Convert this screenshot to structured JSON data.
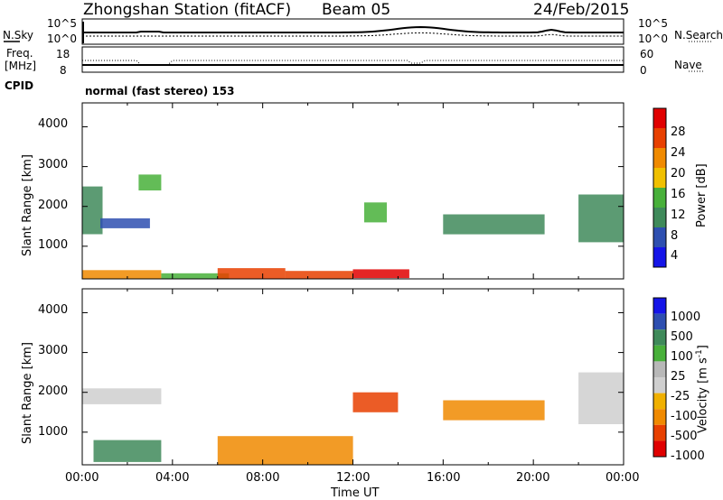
{
  "header": {
    "station": "Zhongshan Station (fitACF)",
    "beam": "Beam 05",
    "date": "24/Feb/2015"
  },
  "noise_panel": {
    "left_label": "N.Sky",
    "right_label": "N.Search",
    "left_ticks": [
      "10^5",
      "10^0"
    ],
    "right_ticks": [
      "10^5",
      "10^0"
    ]
  },
  "freq_panel": {
    "left_label_1": "Freq.",
    "left_label_2": "[MHz]",
    "right_label": "Nave",
    "left_ticks": [
      "18",
      "8"
    ],
    "right_ticks": [
      "60",
      "0"
    ]
  },
  "cpid": {
    "label": "CPID",
    "text": "normal (fast stereo) 153"
  },
  "colors": {
    "power": [
      "#1515e8",
      "#2e4fb0",
      "#3f8a5a",
      "#48b03a",
      "#f0c000",
      "#f08a00",
      "#e84000",
      "#e00000"
    ],
    "velocity": [
      "#e00000",
      "#e84000",
      "#f08a00",
      "#f0b000",
      "#cfcfcf",
      "#b8b8b8",
      "#48b03a",
      "#3f8a5a",
      "#2e4fb0",
      "#1515e8"
    ]
  },
  "power_colorbar": {
    "label": "Power [dB]",
    "ticks": [
      "28",
      "24",
      "20",
      "16",
      "12",
      "8",
      "4"
    ]
  },
  "velocity_colorbar": {
    "label": "Velocity [m s",
    "label_sup": "-1",
    "label_end": "]",
    "ticks": [
      "1000",
      "500",
      "100",
      "25",
      "-25",
      "-100",
      "-500",
      "-1000"
    ]
  },
  "chart_data": [
    {
      "type": "heatmap",
      "title": "Power",
      "ylabel": "Slant Range [km]",
      "xlabel": "Time UT",
      "x_ticks": [
        "00:00",
        "04:00",
        "08:00",
        "12:00",
        "16:00",
        "20:00",
        "00:00"
      ],
      "y_ticks": [
        "1000",
        "2000",
        "3000",
        "4000"
      ],
      "xlim": [
        0,
        24
      ],
      "ylim": [
        180,
        4600
      ],
      "colorbar_range": [
        0,
        32
      ],
      "regions": [
        {
          "t": [
            0.0,
            0.9
          ],
          "r": [
            1300,
            2500
          ],
          "v": 8
        },
        {
          "t": [
            0.0,
            3.5
          ],
          "r": [
            180,
            400
          ],
          "v": 20
        },
        {
          "t": [
            0.8,
            3.0
          ],
          "r": [
            1450,
            1700
          ],
          "v": 6
        },
        {
          "t": [
            2.5,
            3.5
          ],
          "r": [
            2400,
            2800
          ],
          "v": 14
        },
        {
          "t": [
            3.5,
            6.5
          ],
          "r": [
            180,
            320
          ],
          "v": 14
        },
        {
          "t": [
            6.0,
            9.0
          ],
          "r": [
            180,
            450
          ],
          "v": 26
        },
        {
          "t": [
            9.0,
            12.0
          ],
          "r": [
            180,
            380
          ],
          "v": 24
        },
        {
          "t": [
            12.0,
            14.5
          ],
          "r": [
            200,
            420
          ],
          "v": 30
        },
        {
          "t": [
            12.5,
            13.5
          ],
          "r": [
            1600,
            2100
          ],
          "v": 12
        },
        {
          "t": [
            16.0,
            20.5
          ],
          "r": [
            1300,
            1800
          ],
          "v": 10
        },
        {
          "t": [
            22.0,
            24.0
          ],
          "r": [
            1100,
            2300
          ],
          "v": 10
        }
      ]
    },
    {
      "type": "heatmap",
      "title": "Velocity",
      "ylabel": "Slant Range [km]",
      "xlabel": "Time UT",
      "x_ticks": [
        "00:00",
        "04:00",
        "08:00",
        "12:00",
        "16:00",
        "20:00",
        "00:00"
      ],
      "y_ticks": [
        "1000",
        "2000",
        "3000",
        "4000"
      ],
      "xlim": [
        0,
        24
      ],
      "ylim": [
        180,
        4600
      ],
      "colorbar_range": [
        -1000,
        1000
      ],
      "regions": [
        {
          "t": [
            0.0,
            3.5
          ],
          "r": [
            1700,
            2100
          ],
          "v": 0
        },
        {
          "t": [
            0.5,
            3.5
          ],
          "r": [
            250,
            800
          ],
          "v": 200
        },
        {
          "t": [
            6.0,
            12.0
          ],
          "r": [
            180,
            900
          ],
          "v": -300
        },
        {
          "t": [
            12.0,
            14.0
          ],
          "r": [
            1500,
            2000
          ],
          "v": -600
        },
        {
          "t": [
            16.0,
            20.5
          ],
          "r": [
            1300,
            1800
          ],
          "v": -100
        },
        {
          "t": [
            22.0,
            24.0
          ],
          "r": [
            1200,
            2500
          ],
          "v": 0
        }
      ]
    }
  ]
}
